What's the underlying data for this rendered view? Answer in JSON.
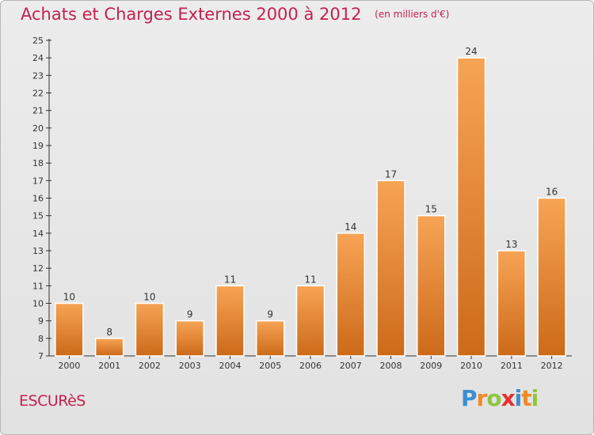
{
  "page": {
    "title": "Achats et Charges Externes 2000 à 2012",
    "subtitle": "(en milliers d'€)",
    "commune": "ESCURèS",
    "logo_letters": [
      "P",
      "r",
      "o",
      "x",
      "i",
      "t",
      "i"
    ]
  },
  "colors": {
    "title": "#c4214f",
    "bar_light": "#f7a455",
    "bar_dark": "#cc6a19",
    "label": "#333333"
  },
  "chart_data": {
    "type": "bar",
    "title": "Achats et Charges Externes 2000 à 2012",
    "subtitle": "(en milliers d'€)",
    "categories": [
      "2000",
      "2001",
      "2002",
      "2003",
      "2004",
      "2005",
      "2006",
      "2007",
      "2008",
      "2009",
      "2010",
      "2011",
      "2012"
    ],
    "values": [
      10,
      8,
      10,
      9,
      11,
      9,
      11,
      14,
      17,
      15,
      24,
      13,
      16
    ],
    "ylim": [
      7,
      25
    ],
    "yticks": [
      7,
      8,
      9,
      10,
      11,
      12,
      13,
      14,
      15,
      16,
      17,
      18,
      19,
      20,
      21,
      22,
      23,
      24,
      25
    ],
    "xlabel": "",
    "ylabel": "",
    "grid": false,
    "data_labels": true
  }
}
